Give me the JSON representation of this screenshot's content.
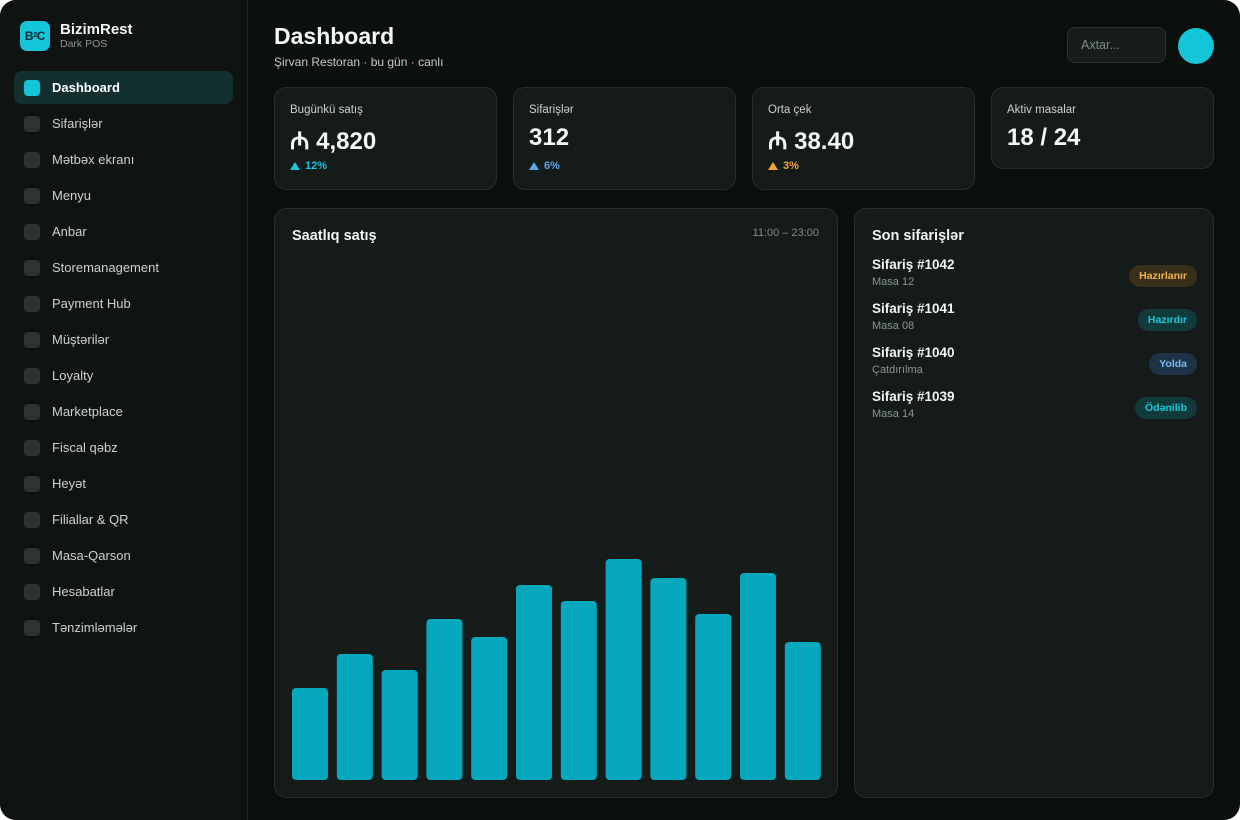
{
  "brand": {
    "logo_text": "B²C",
    "logo_main": "B",
    "logo_sup": "2",
    "logo_end": "C",
    "name": "BizimRest",
    "subtitle": "Dark POS"
  },
  "sidebar": {
    "items": [
      {
        "label": "Dashboard",
        "active": true
      },
      {
        "label": "Sifarişlər"
      },
      {
        "label": "Mətbəx ekranı"
      },
      {
        "label": "Menyu"
      },
      {
        "label": "Anbar"
      },
      {
        "label": "Storemanagement"
      },
      {
        "label": "Payment Hub"
      },
      {
        "label": "Müştərilər"
      },
      {
        "label": "Loyalty"
      },
      {
        "label": "Marketplace"
      },
      {
        "label": "Fiscal qəbz"
      },
      {
        "label": "Heyət"
      },
      {
        "label": "Filiallar & QR"
      },
      {
        "label": "Masa-Qarson"
      },
      {
        "label": "Hesabatlar"
      },
      {
        "label": "Tənzimləmələr"
      }
    ]
  },
  "header": {
    "title": "Dashboard",
    "subtitle": "Şirvan Restoran · bu gün · canlı",
    "search_placeholder": "Axtar..."
  },
  "stats": [
    {
      "label": "Bugünkü satış",
      "value": "₼ 4,820",
      "delta": "12%",
      "delta_color": "#22c3dc"
    },
    {
      "label": "Sifarişlər",
      "value": "312",
      "delta": "6%",
      "delta_color": "#5aa8ec"
    },
    {
      "label": "Orta çek",
      "value": "₼ 38.40",
      "delta": "3%",
      "delta_color": "#f2a53a"
    },
    {
      "label": "Aktiv masalar",
      "value": "18 / 24"
    }
  ],
  "hourly_panel": {
    "title": "Saatlıq satış",
    "range": "11:00 – 23:00"
  },
  "chart_data": {
    "type": "bar",
    "values": [
      92,
      126,
      110,
      161,
      143,
      195,
      179,
      221,
      202,
      166,
      207,
      138
    ],
    "bar_color": "#05a8bd"
  },
  "orders_panel": {
    "title": "Son sifarişlər",
    "orders": [
      {
        "title": "Sifariş #1042",
        "sub": "Masa 12",
        "status": "Hazırlanır",
        "color": "#f0b34a",
        "bg": "#3a2f1a"
      },
      {
        "title": "Sifariş #1041",
        "sub": "Masa 08",
        "status": "Hazırdır",
        "color": "#1ec7d8",
        "bg": "#123a3b"
      },
      {
        "title": "Sifariş #1040",
        "sub": "Çatdırılma",
        "status": "Yolda",
        "color": "#7ab8f5",
        "bg": "#1e3346"
      },
      {
        "title": "Sifariş #1039",
        "sub": "Masa 14",
        "status": "Ödənilib",
        "color": "#1ec7d8",
        "bg": "#123a3b"
      }
    ]
  }
}
